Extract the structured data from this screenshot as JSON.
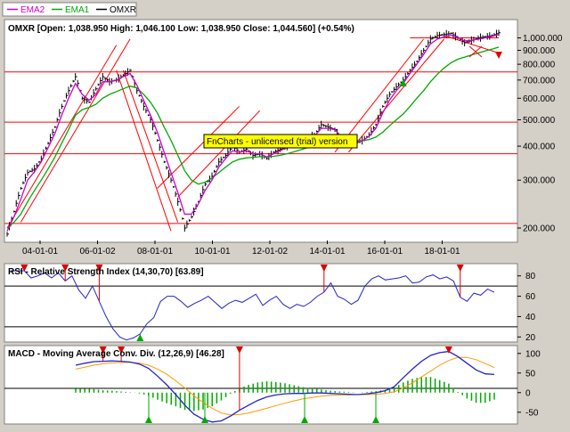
{
  "legend": [
    {
      "label": "EMA2",
      "color": "#cc00cc"
    },
    {
      "label": "EMA1",
      "color": "#00aa00"
    },
    {
      "label": "OMXR",
      "color": "#000000"
    }
  ],
  "watermark": "FnCharts - unlicensed (trial) version",
  "colors": {
    "background": "#d4d0c8",
    "panel": "#ffffff",
    "price_bar": "#000000",
    "ema2": "#cc00cc",
    "ema1": "#00aa00",
    "trend_line": "#ff0000",
    "rsi_line": "#2222cc",
    "macd_line": "#2222cc",
    "signal_line": "#ff9900",
    "histogram": "#00aa00",
    "sell_marker": "#dd0000",
    "buy_marker": "#00aa00",
    "watermark_bg": "#ffff00"
  },
  "chart_data": [
    {
      "type": "line",
      "title": "OMXR [Open: 1,038.950  High: 1,046.100  Low: 1,038.950  Close: 1,044.560] (+0.54%)",
      "scale": "log",
      "x_ticks": [
        "04-01-01",
        "06-01-02",
        "08-01-01",
        "10-01-01",
        "12-01-02",
        "14-01-01",
        "16-01-01",
        "18-01-01"
      ],
      "y_ticks": [
        "1,000.000",
        "900.000",
        "800.000",
        "700.000",
        "600.000",
        "500.000",
        "400.000",
        "300.000",
        "200.000"
      ],
      "ylim": [
        180,
        1150
      ],
      "series": [
        {
          "name": "OMXR",
          "values": [
            190,
            230,
            280,
            320,
            330,
            360,
            410,
            470,
            560,
            640,
            720,
            600,
            580,
            650,
            720,
            690,
            700,
            730,
            760,
            640,
            560,
            500,
            420,
            350,
            300,
            250,
            200,
            220,
            250,
            290,
            310,
            350,
            370,
            400,
            380,
            390,
            370,
            375,
            360,
            380,
            390,
            400,
            410,
            420,
            430,
            440,
            480,
            470,
            460,
            420,
            410,
            410,
            420,
            440,
            480,
            560,
            620,
            660,
            700,
            760,
            820,
            900,
            990,
            1020,
            1030,
            1040,
            1000,
            960,
            980,
            1000,
            1010,
            1020,
            1044.56
          ]
        },
        {
          "name": "EMA2",
          "values": [
            195,
            220,
            255,
            300,
            322,
            350,
            395,
            445,
            520,
            600,
            680,
            620,
            590,
            620,
            690,
            690,
            700,
            720,
            740,
            670,
            590,
            520,
            450,
            380,
            320,
            270,
            225,
            225,
            245,
            275,
            300,
            335,
            360,
            385,
            380,
            385,
            375,
            375,
            365,
            375,
            385,
            395,
            405,
            415,
            425,
            435,
            465,
            465,
            460,
            430,
            415,
            412,
            418,
            435,
            465,
            530,
            590,
            640,
            680,
            740,
            800,
            870,
            950,
            990,
            1010,
            1025,
            1005,
            975,
            980,
            990,
            1000,
            1012,
            1030
          ]
        },
        {
          "name": "EMA1",
          "values": [
            200,
            210,
            225,
            250,
            275,
            300,
            330,
            365,
            410,
            460,
            520,
            545,
            555,
            570,
            600,
            620,
            635,
            650,
            665,
            655,
            620,
            580,
            530,
            470,
            420,
            370,
            325,
            300,
            290,
            295,
            305,
            320,
            335,
            350,
            358,
            362,
            364,
            366,
            365,
            367,
            370,
            375,
            381,
            388,
            395,
            403,
            415,
            423,
            428,
            425,
            421,
            419,
            419,
            423,
            432,
            450,
            475,
            500,
            525,
            560,
            600,
            640,
            690,
            735,
            775,
            810,
            835,
            850,
            865,
            880,
            895,
            908,
            925
          ]
        }
      ],
      "annotations": [
        "FnCharts - unlicensed (trial) version"
      ]
    },
    {
      "type": "line",
      "title": "RSI - Relative Strength Index (14,30,70) [63.89]",
      "y_ticks": [
        20,
        40,
        60,
        80
      ],
      "ylim": [
        15,
        92
      ],
      "reference_lines": [
        30,
        70
      ],
      "series": [
        {
          "name": "RSI",
          "values": [
            85,
            85,
            85,
            78,
            80,
            83,
            78,
            83,
            75,
            80,
            66,
            58,
            70,
            55,
            40,
            28,
            20,
            17,
            19,
            23,
            33,
            39,
            55,
            60,
            60,
            55,
            49,
            53,
            56,
            60,
            54,
            48,
            53,
            56,
            54,
            58,
            62,
            51,
            56,
            60,
            52,
            48,
            52,
            50,
            54,
            60,
            64,
            73,
            60,
            57,
            52,
            56,
            70,
            77,
            80,
            76,
            77,
            78,
            80,
            73,
            74,
            79,
            81,
            77,
            79,
            75,
            59,
            55,
            63,
            61,
            67,
            63.89
          ]
        }
      ],
      "sell_signals": 5,
      "buy_signals": 1
    },
    {
      "type": "line",
      "title": "MACD - Moving Average Conv. Div. (12,26,9) [46.28]",
      "y_ticks": [
        -50,
        0,
        50,
        100
      ],
      "ylim": [
        -80,
        120
      ],
      "series": [
        {
          "name": "MACD",
          "values": [
            70,
            75,
            79,
            80,
            81,
            80,
            78,
            73,
            62,
            42,
            20,
            -5,
            -32,
            -55,
            -68,
            -75,
            -72,
            -60,
            -45,
            -32,
            -20,
            -11,
            -6,
            -3,
            -2,
            -2,
            -1,
            -1,
            -2,
            -3,
            -4,
            -5,
            -3,
            0,
            5,
            15,
            38,
            60,
            80,
            95,
            102,
            105,
            92,
            75,
            58,
            48,
            46.28
          ]
        },
        {
          "name": "Signal",
          "values": [
            60,
            65,
            70,
            74,
            76,
            77,
            77,
            75,
            70,
            60,
            47,
            30,
            12,
            -8,
            -25,
            -40,
            -52,
            -57,
            -56,
            -52,
            -46,
            -40,
            -33,
            -27,
            -21,
            -16,
            -12,
            -9,
            -7,
            -6,
            -6,
            -5,
            -5,
            -4,
            -2,
            2,
            12,
            25,
            40,
            55,
            70,
            82,
            90,
            90,
            84,
            74,
            64
          ]
        }
      ],
      "sell_signals": 4,
      "buy_signals": 4
    }
  ]
}
